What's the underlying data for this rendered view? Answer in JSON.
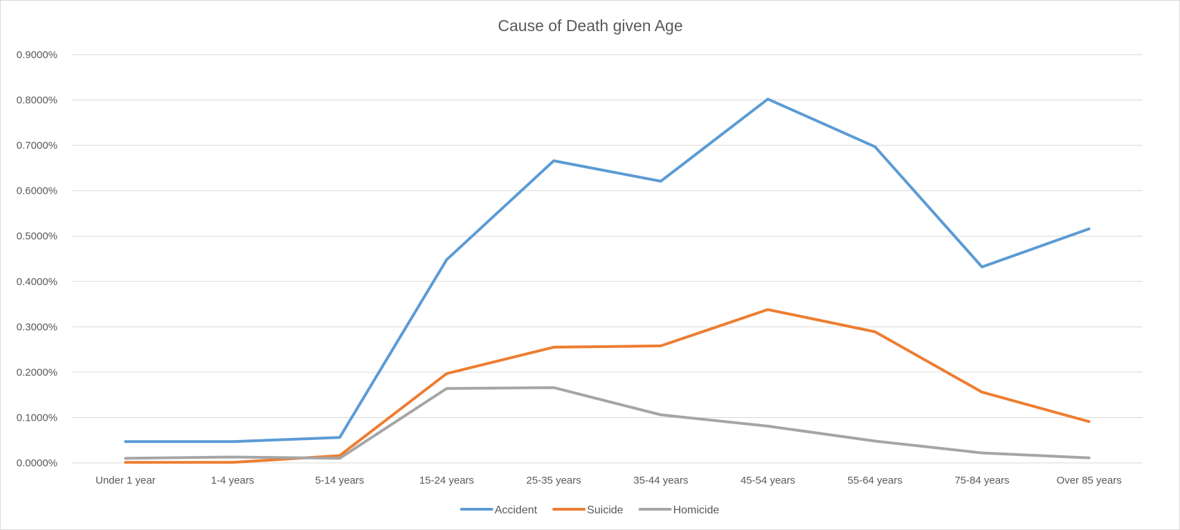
{
  "chart_data": {
    "type": "line",
    "title": "Cause of Death given Age",
    "xlabel": "",
    "ylabel": "",
    "categories": [
      "Under 1 year",
      "1-4 years",
      "5-14 years",
      "15-24 years",
      "25-35 years",
      "35-44 years",
      "45-54 years",
      "55-64 years",
      "75-84 years",
      "Over 85 years"
    ],
    "y_ticks": [
      "0.0000%",
      "0.1000%",
      "0.2000%",
      "0.3000%",
      "0.4000%",
      "0.5000%",
      "0.6000%",
      "0.7000%",
      "0.8000%",
      "0.9000%"
    ],
    "ylim": [
      0,
      0.9
    ],
    "y_unit": "%",
    "grid": true,
    "legend_position": "bottom",
    "series": [
      {
        "name": "Accident",
        "color": "#5b9bd5",
        "values": [
          0.047,
          0.047,
          0.056,
          0.448,
          0.666,
          0.621,
          0.802,
          0.697,
          0.432,
          0.516
        ]
      },
      {
        "name": "Suicide",
        "color": "#ed7d31",
        "values": [
          0.001,
          0.001,
          0.016,
          0.197,
          0.255,
          0.258,
          0.338,
          0.289,
          0.156,
          0.091
        ]
      },
      {
        "name": "Homicide",
        "color": "#a5a5a5",
        "values": [
          0.01,
          0.013,
          0.01,
          0.164,
          0.166,
          0.106,
          0.081,
          0.048,
          0.022,
          0.011
        ]
      }
    ]
  }
}
